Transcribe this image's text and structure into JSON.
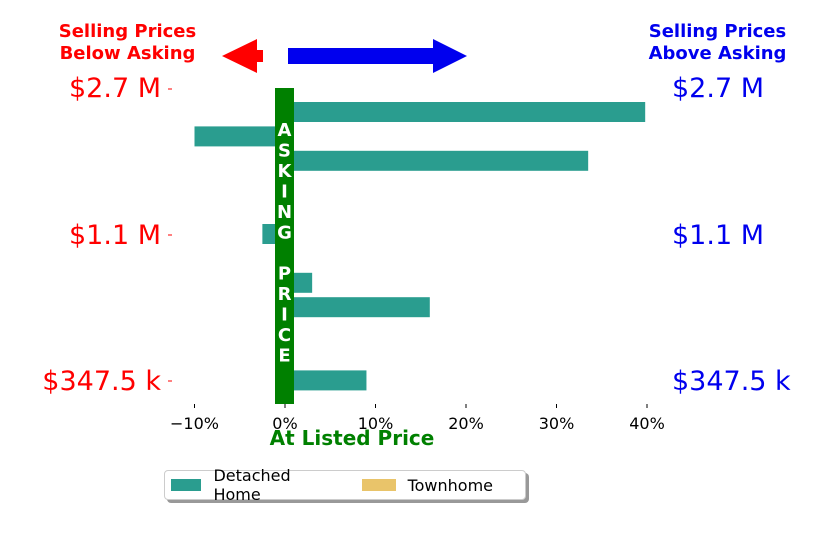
{
  "header": {
    "left_line1": "Selling Prices",
    "left_line2": "Below Asking",
    "right_line1": "Selling Prices",
    "right_line2": "Above Asking"
  },
  "price_labels": [
    "$2.7 M",
    "$1.1 M",
    "$347.5 k"
  ],
  "colors": {
    "below": "#ff0000",
    "above": "#0000ee",
    "asking_bar": "#008000",
    "detached": "#2a9d8f",
    "townhome": "#e9c46a"
  },
  "asking_letters": [
    "A",
    "S",
    "K",
    "I",
    "N",
    "G",
    "",
    "P",
    "R",
    "I",
    "C",
    "E"
  ],
  "chart_data": {
    "type": "bar",
    "orientation": "horizontal",
    "xlabel": "At Listed Price",
    "xlim": [
      -13,
      42
    ],
    "xticks": [
      -10,
      0,
      10,
      20,
      30,
      40
    ],
    "xtick_labels": [
      "−10%",
      "0%",
      "10%",
      "20%",
      "30%",
      "40%"
    ],
    "y_labels": [
      "$2.7 M",
      "$1.1 M",
      "$347.5 k"
    ],
    "series": [
      {
        "name": "Detached Home",
        "values": [
          39.8,
          -10,
          33.5,
          0.2,
          0.3,
          -2.5,
          0.2,
          3,
          16,
          0.2,
          0.2,
          9
        ]
      },
      {
        "name": "Townhome",
        "values": []
      }
    ],
    "legend": "bottom-center"
  }
}
